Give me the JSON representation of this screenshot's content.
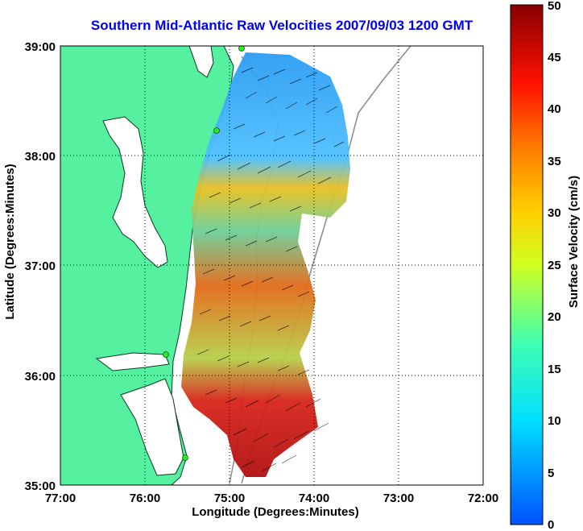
{
  "title": "Southern Mid-Atlantic Raw Velocities 2007/09/03 1200 GMT",
  "xlabel": "Longitude (Degrees:Minutes)",
  "ylabel": "Latitude (Degrees:Minutes)",
  "colorbar": {
    "label": "Surface Velocity (cm/s)",
    "min": 0,
    "max": 50,
    "ticks": [
      "0",
      "5",
      "10",
      "15",
      "20",
      "25",
      "30",
      "35",
      "40",
      "45",
      "50"
    ]
  },
  "lon_ticks": [
    "77:00",
    "76:00",
    "75:00",
    "74:00",
    "73:00",
    "72:00"
  ],
  "lat_ticks": [
    "39:00",
    "38:00",
    "37:00",
    "36:00",
    "35:00"
  ],
  "colors": {
    "land": "#55f0a0",
    "title": "#0000ee",
    "station": "#2ee82e"
  }
}
